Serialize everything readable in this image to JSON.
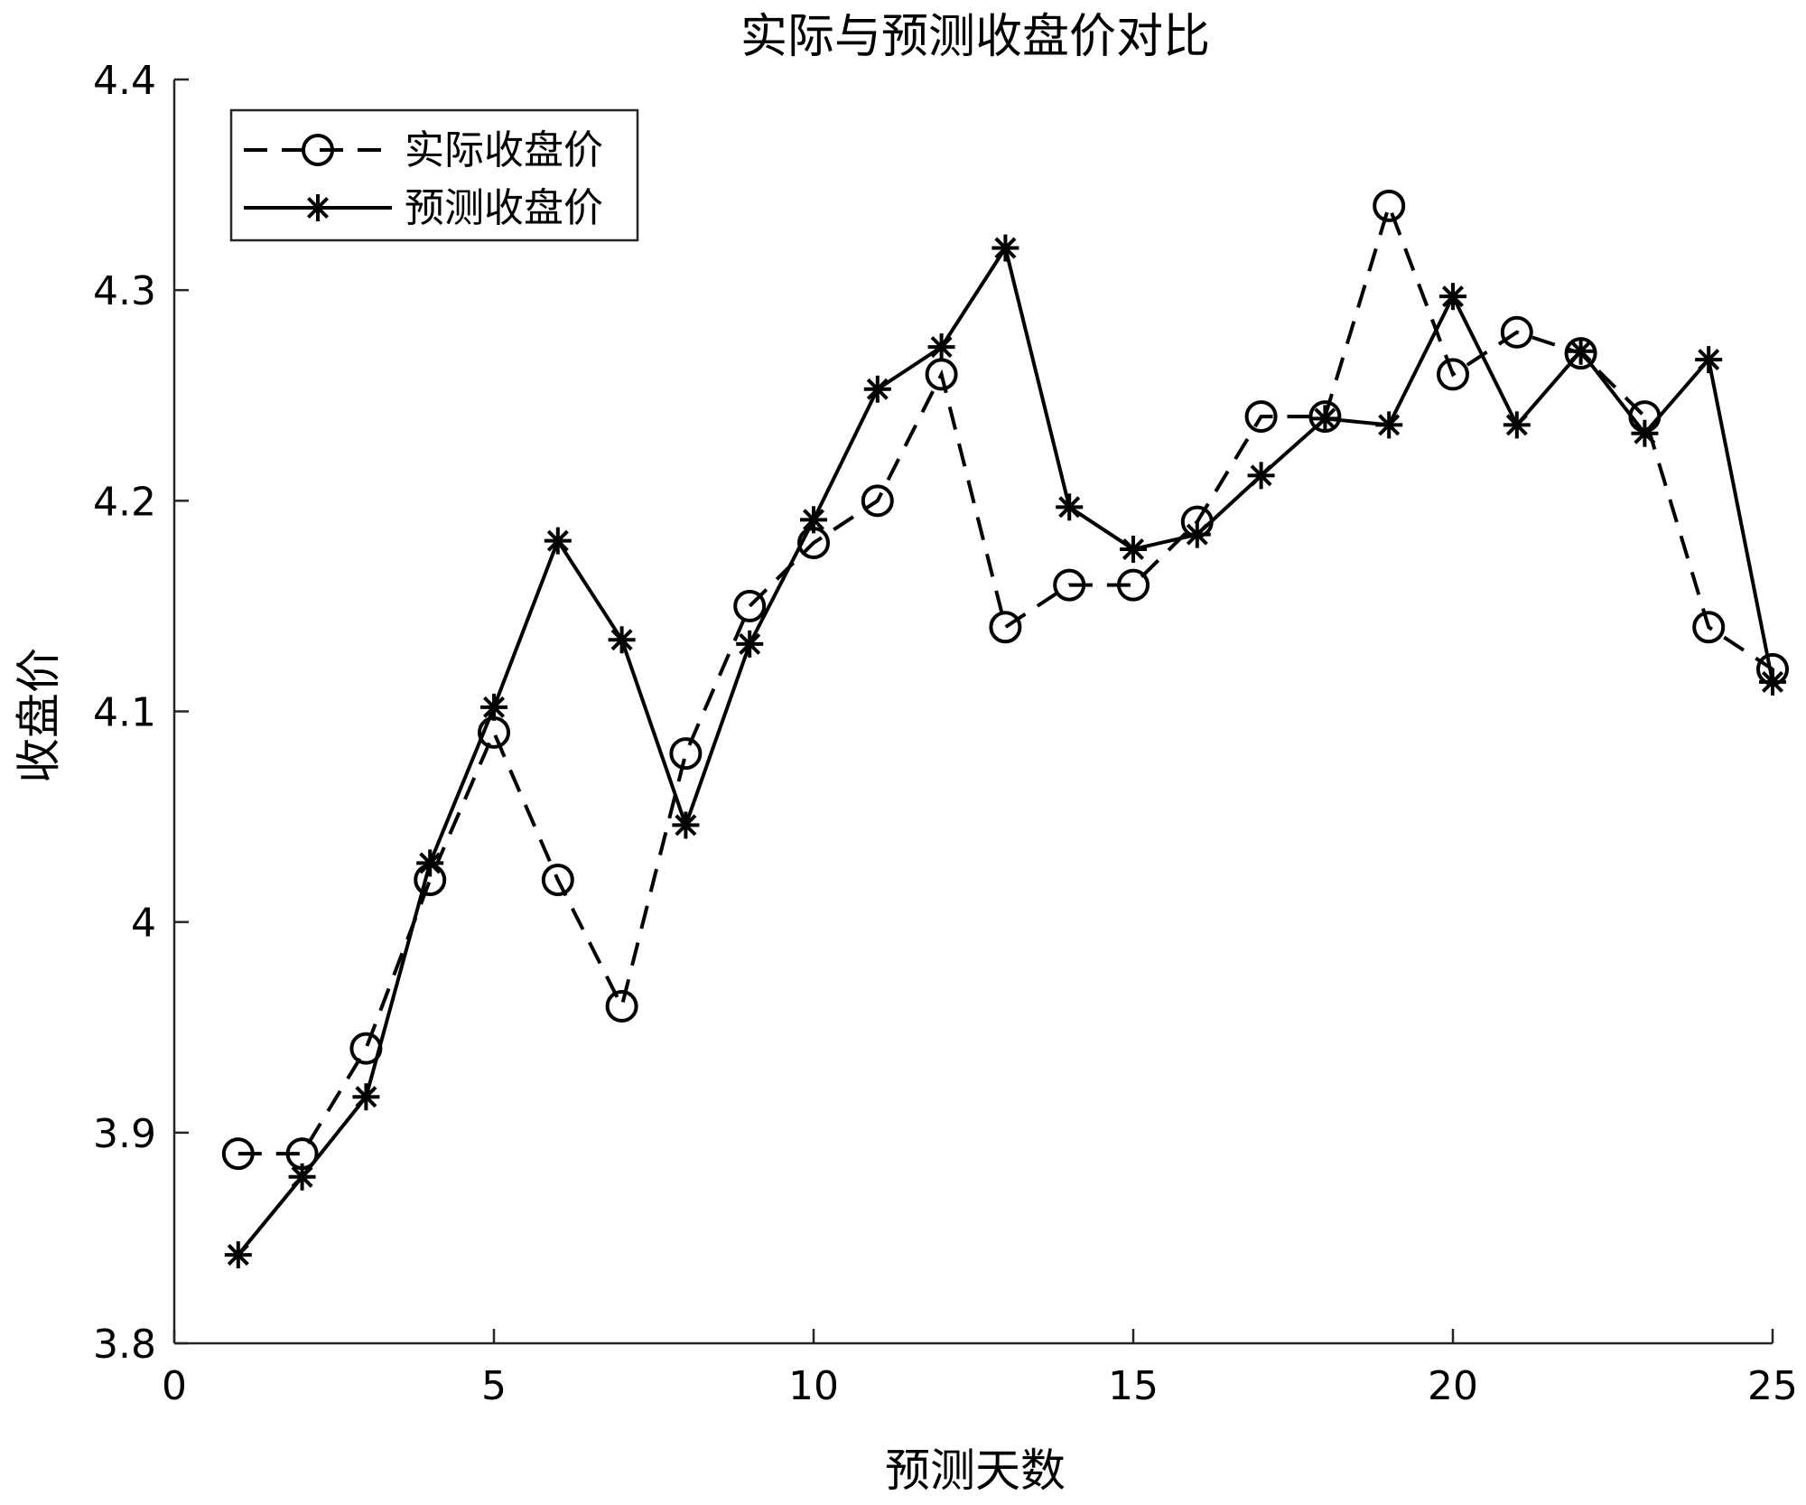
{
  "chart_data": {
    "type": "line",
    "title": "实际与预测收盘价对比",
    "xlabel": "预测天数",
    "ylabel": "收盘价",
    "xlim": [
      0,
      25
    ],
    "ylim": [
      3.8,
      4.4
    ],
    "xticks": [
      0,
      5,
      10,
      15,
      20,
      25
    ],
    "yticks": [
      3.8,
      3.9,
      4.0,
      4.1,
      4.2,
      4.3,
      4.4
    ],
    "ytick_labels": [
      "3.8",
      "3.9",
      "4",
      "4.1",
      "4.2",
      "4.3",
      "4.4"
    ],
    "legend_position": "top-left",
    "x": [
      1,
      2,
      3,
      4,
      5,
      6,
      7,
      8,
      9,
      10,
      11,
      12,
      13,
      14,
      15,
      16,
      17,
      18,
      19,
      20,
      21,
      22,
      23,
      24,
      25
    ],
    "series": [
      {
        "name": "实际收盘价",
        "style": "dashed",
        "marker": "circle",
        "color": "#000000",
        "values": [
          3.89,
          3.89,
          3.94,
          4.02,
          4.09,
          4.02,
          3.96,
          4.08,
          4.15,
          4.18,
          4.2,
          4.26,
          4.14,
          4.16,
          4.16,
          4.19,
          4.24,
          4.24,
          4.34,
          4.26,
          4.28,
          4.27,
          4.24,
          4.14,
          4.12
        ]
      },
      {
        "name": "预测收盘价",
        "style": "solid",
        "marker": "asterisk",
        "color": "#000000",
        "values": [
          3.842,
          3.879,
          3.917,
          4.028,
          4.102,
          4.181,
          4.134,
          4.046,
          4.132,
          4.191,
          4.253,
          4.273,
          4.32,
          4.197,
          4.177,
          4.184,
          4.212,
          4.239,
          4.236,
          4.297,
          4.236,
          4.271,
          4.232,
          4.267,
          4.114
        ]
      }
    ]
  }
}
